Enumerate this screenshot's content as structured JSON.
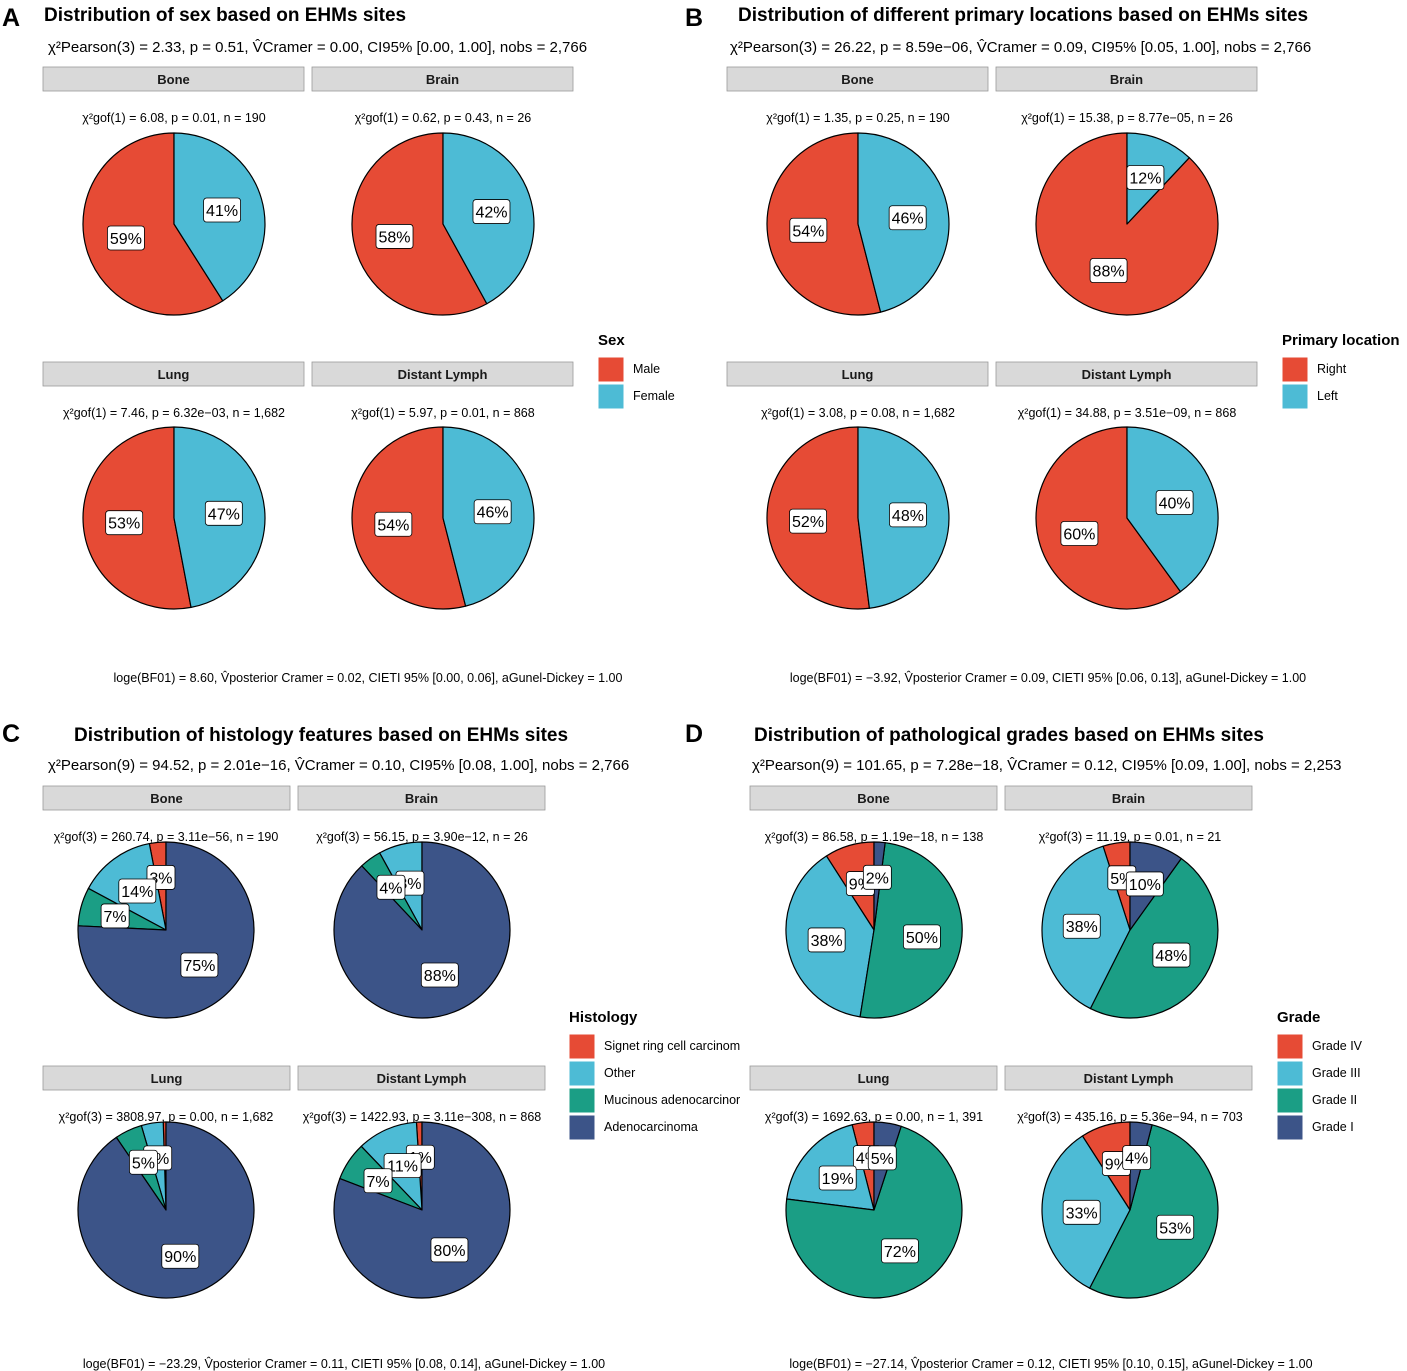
{
  "colors": {
    "red": "#E64B35",
    "cyan": "#4DBBD5",
    "teal": "#1B9E85",
    "navy": "#3C5488",
    "strip": "#D9D9D9"
  },
  "panels": [
    {
      "letter": "A",
      "title": "Distribution of sex based on EHMs sites",
      "subtitle": "χ²Pearson(3) = 2.33, p = 0.51, V̂Cramer = 0.00, CI95% [0.00, 1.00], nobs = 2,766",
      "caption": "loge(BF01) = 8.60, V̂posterior Cramer = 0.02, CIETI 95% [0.00, 0.06], aGunel-Dickey = 1.00",
      "legend": {
        "title": "Sex",
        "items": [
          {
            "label": "Male",
            "color": "#E64B35"
          },
          {
            "label": "Female",
            "color": "#4DBBD5"
          }
        ]
      }
    },
    {
      "letter": "B",
      "title": "Distribution of different primary locations based on EHMs sites",
      "subtitle": "χ²Pearson(3) = 26.22, p = 8.59e−06, V̂Cramer = 0.09, CI95% [0.05, 1.00], nobs = 2,766",
      "caption": "loge(BF01) = −3.92, V̂posterior Cramer = 0.09, CIETI 95% [0.06, 0.13], aGunel-Dickey = 1.00",
      "legend": {
        "title": "Primary location",
        "items": [
          {
            "label": "Right",
            "color": "#E64B35"
          },
          {
            "label": "Left",
            "color": "#4DBBD5"
          }
        ]
      }
    },
    {
      "letter": "C",
      "title": "Distribution of histology features based on EHMs sites",
      "subtitle": "χ²Pearson(9) = 94.52, p = 2.01e−16, V̂Cramer = 0.10, CI95% [0.08, 1.00], nobs = 2,766",
      "caption": "loge(BF01) = −23.29, V̂posterior Cramer = 0.11, CIETI 95% [0.08, 0.14], aGunel-Dickey = 1.00",
      "legend": {
        "title": "Histology",
        "items": [
          {
            "label": "Signet ring cell carcinom",
            "color": "#E64B35"
          },
          {
            "label": "Other",
            "color": "#4DBBD5"
          },
          {
            "label": "Mucinous adenocarcinor",
            "color": "#1B9E85"
          },
          {
            "label": "Adenocarcinoma",
            "color": "#3C5488"
          }
        ]
      }
    },
    {
      "letter": "D",
      "title": "Distribution of  pathological grades based on EHMs sites",
      "subtitle": "χ²Pearson(9) = 101.65, p = 7.28e−18, V̂Cramer = 0.12, CI95% [0.09, 1.00], nobs = 2,253",
      "caption": "loge(BF01) = −27.14, V̂posterior Cramer = 0.12, CIETI 95% [0.10, 0.15], aGunel-Dickey = 1.00",
      "legend": {
        "title": "Grade",
        "items": [
          {
            "label": "Grade IV",
            "color": "#E64B35"
          },
          {
            "label": "Grade III",
            "color": "#4DBBD5"
          },
          {
            "label": "Grade II",
            "color": "#1B9E85"
          },
          {
            "label": "Grade I",
            "color": "#3C5488"
          }
        ]
      }
    }
  ],
  "chart_data": [
    {
      "type": "pie",
      "panel": "A",
      "title": "Distribution of sex based on EHMs sites",
      "categories": [
        "Male",
        "Female"
      ],
      "facets": [
        {
          "name": "Bone",
          "stat": "χ²gof(1) = 6.08, p = 0.01, n = 190",
          "values": [
            59,
            41
          ],
          "labels": [
            "59%",
            "41%"
          ]
        },
        {
          "name": "Brain",
          "stat": "χ²gof(1) = 0.62, p = 0.43, n = 26",
          "values": [
            58,
            42
          ],
          "labels": [
            "58%",
            "42%"
          ]
        },
        {
          "name": "Lung",
          "stat": "χ²gof(1) = 7.46, p = 6.32e−03, n = 1,682",
          "values": [
            53,
            47
          ],
          "labels": [
            "53%",
            "47%"
          ]
        },
        {
          "name": "Distant Lymph",
          "stat": "χ²gof(1) = 5.97, p = 0.01, n = 868",
          "values": [
            54,
            46
          ],
          "labels": [
            "54%",
            "46%"
          ]
        }
      ]
    },
    {
      "type": "pie",
      "panel": "B",
      "title": "Distribution of different primary locations based on EHMs sites",
      "categories": [
        "Right",
        "Left"
      ],
      "facets": [
        {
          "name": "Bone",
          "stat": "χ²gof(1) = 1.35, p = 0.25, n = 190",
          "values": [
            54,
            46
          ],
          "labels": [
            "54%",
            "46%"
          ]
        },
        {
          "name": "Brain",
          "stat": "χ²gof(1) = 15.38, p = 8.77e−05, n = 26",
          "values": [
            88,
            12
          ],
          "labels": [
            "88%",
            "12%"
          ]
        },
        {
          "name": "Lung",
          "stat": "χ²gof(1) = 3.08, p = 0.08, n = 1,682",
          "values": [
            52,
            48
          ],
          "labels": [
            "52%",
            "48%"
          ]
        },
        {
          "name": "Distant Lymph",
          "stat": "χ²gof(1) = 34.88, p = 3.51e−09, n = 868",
          "values": [
            60,
            40
          ],
          "labels": [
            "60%",
            "40%"
          ]
        }
      ]
    },
    {
      "type": "pie",
      "panel": "C",
      "title": "Distribution of histology features based on EHMs sites",
      "categories": [
        "Signet ring cell carcinoma",
        "Other",
        "Mucinous adenocarcinoma",
        "Adenocarcinoma"
      ],
      "facets": [
        {
          "name": "Bone",
          "stat": "χ²gof(3) = 260.74, p = 3.11e−56, n = 190",
          "values": [
            3,
            14,
            7,
            75
          ],
          "labels": [
            "3%",
            "14%",
            "7%",
            "75%"
          ]
        },
        {
          "name": "Brain",
          "stat": "χ²gof(3) = 56.15, p = 3.90e−12, n = 26",
          "values": [
            0,
            8,
            4,
            88
          ],
          "labels": [
            "",
            "8%",
            "4%",
            "88%"
          ]
        },
        {
          "name": "Lung",
          "stat": "χ²gof(3) = 3808.97, p = 0.00, n = 1,682",
          "values": [
            0.5,
            4,
            5,
            90
          ],
          "labels": [
            "",
            "4%",
            "5%",
            "90%"
          ]
        },
        {
          "name": "Distant Lymph",
          "stat": "χ²gof(3) = 1422.93, p = 3.11e−308, n = 868",
          "values": [
            1,
            11,
            7,
            80
          ],
          "labels": [
            "1%",
            "11%",
            "7%",
            "80%"
          ]
        }
      ]
    },
    {
      "type": "pie",
      "panel": "D",
      "title": "Distribution of  pathological grades based on EHMs sites",
      "categories": [
        "Grade IV",
        "Grade III",
        "Grade II",
        "Grade I"
      ],
      "facets": [
        {
          "name": "Bone",
          "stat": "χ²gof(3) = 86.58, p = 1.19e−18, n = 138",
          "values": [
            9,
            38,
            50,
            2
          ],
          "labels": [
            "9%",
            "38%",
            "50%",
            "2%"
          ]
        },
        {
          "name": "Brain",
          "stat": "χ²gof(3) = 11.19, p = 0.01, n = 21",
          "values": [
            5,
            38,
            48,
            10
          ],
          "labels": [
            "5%",
            "38%",
            "48%",
            "10%"
          ]
        },
        {
          "name": "Lung",
          "stat": "χ²gof(3) = 1692.63, p = 0.00, n = 1, 391",
          "values": [
            4,
            19,
            72,
            5
          ],
          "labels": [
            "4%",
            "19%",
            "72%",
            "5%"
          ]
        },
        {
          "name": "Distant Lymph",
          "stat": "χ²gof(3) = 435.16, p = 5.36e−94, n = 703",
          "values": [
            9,
            33,
            53,
            4
          ],
          "labels": [
            "9%",
            "33%",
            "53%",
            "4%"
          ]
        }
      ]
    }
  ]
}
